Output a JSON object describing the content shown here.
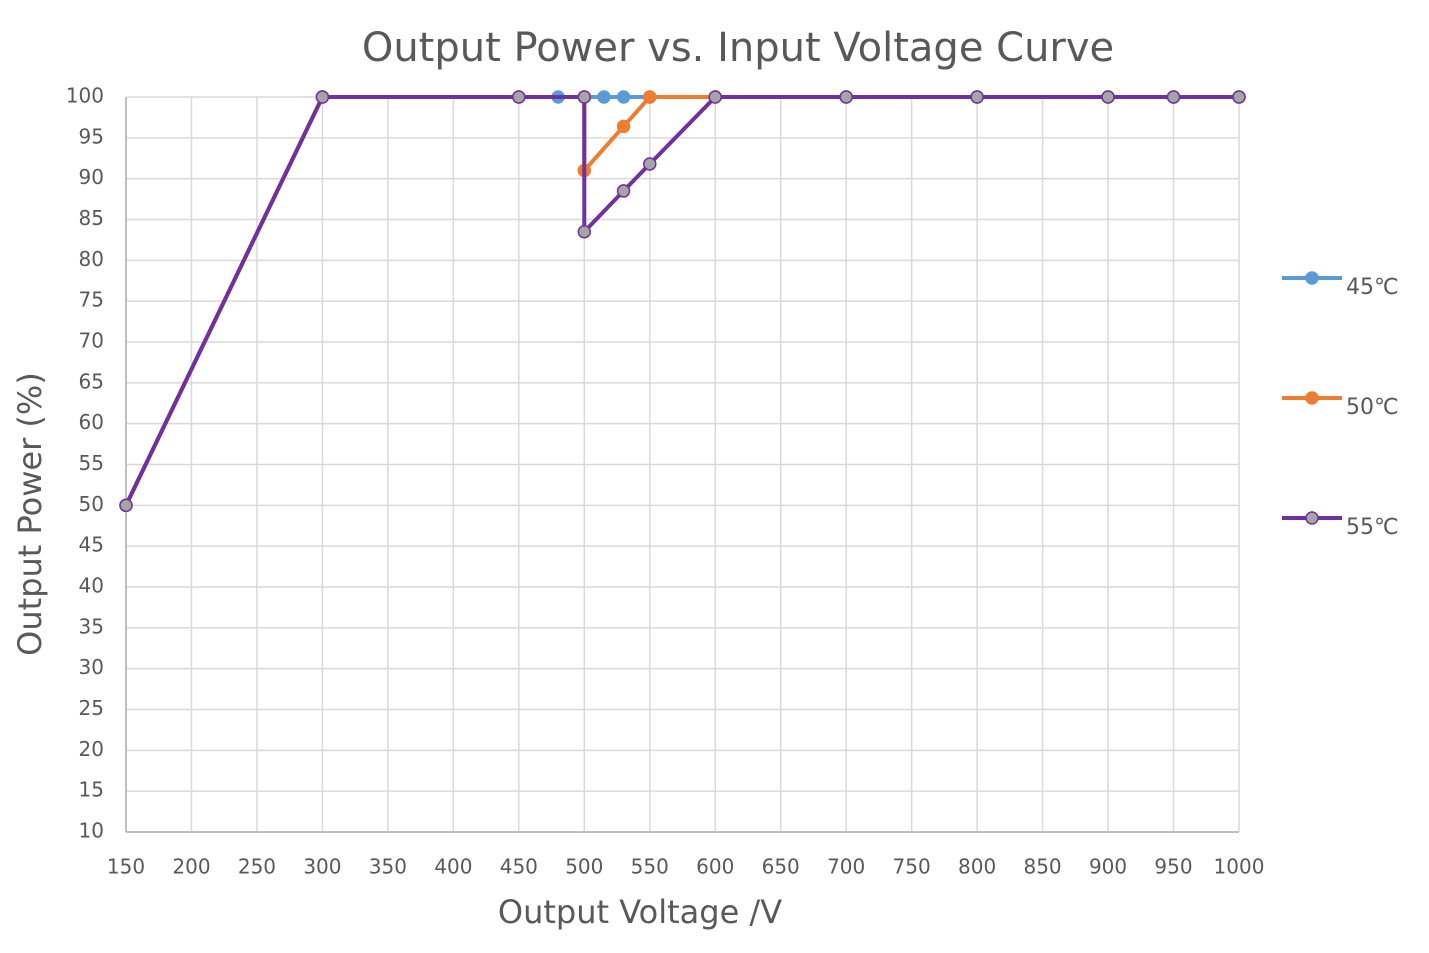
{
  "chart_data": {
    "type": "line",
    "title": "Output Power vs. Input Voltage Curve",
    "x_label": "Output Voltage /V",
    "y_label": "Output Power (%)",
    "xlim": [
      150,
      1000
    ],
    "ylim": [
      10,
      100
    ],
    "xticks": [
      150,
      200,
      250,
      300,
      350,
      400,
      450,
      500,
      550,
      600,
      650,
      700,
      750,
      800,
      850,
      900,
      950,
      1000
    ],
    "yticks": [
      10,
      15,
      20,
      25,
      30,
      35,
      40,
      45,
      50,
      55,
      60,
      65,
      70,
      75,
      80,
      85,
      90,
      95,
      100
    ],
    "grid": true,
    "legend": "right",
    "series": [
      {
        "name": "45℃",
        "color": "#5b9bd5",
        "marker_color": "#5b9bd5",
        "x": [
          150,
          300,
          450,
          480,
          500,
          515,
          530,
          550,
          600,
          700,
          800,
          900,
          950,
          1000
        ],
        "values": [
          50,
          100,
          100,
          100,
          100,
          100,
          100,
          100,
          100,
          100,
          100,
          100,
          100,
          100
        ]
      },
      {
        "name": "50℃",
        "color": "#ed7d31",
        "marker_color": "#ed7d31",
        "x": [
          150,
          300,
          450,
          500,
          500,
          530,
          550,
          600,
          700,
          800,
          900,
          950,
          1000
        ],
        "values": [
          50,
          100,
          100,
          100,
          91,
          96.4,
          100,
          100,
          100,
          100,
          100,
          100,
          100
        ]
      },
      {
        "name": "55℃",
        "color": "#7030a0",
        "marker_color": "#a5a5a5",
        "x": [
          150,
          300,
          450,
          500,
          500,
          530,
          550,
          600,
          700,
          800,
          900,
          950,
          1000
        ],
        "values": [
          50,
          100,
          100,
          100,
          83.5,
          88.5,
          91.8,
          100,
          100,
          100,
          100,
          100,
          100
        ]
      }
    ]
  }
}
